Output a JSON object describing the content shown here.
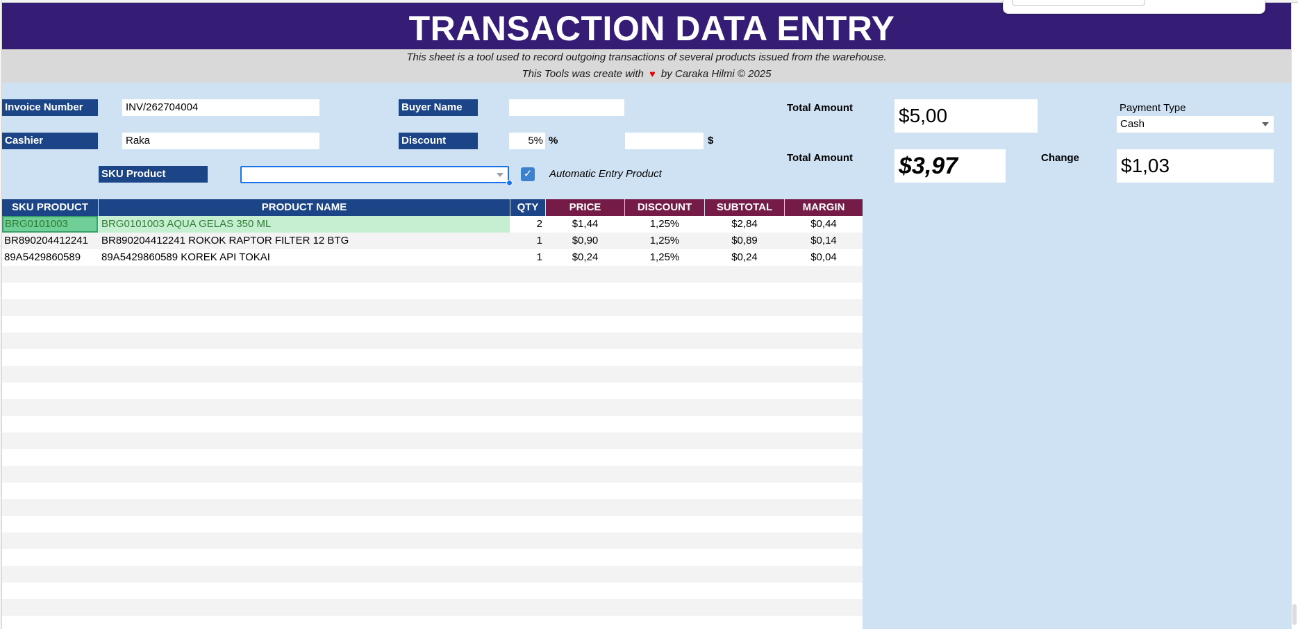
{
  "header": {
    "title": "TRANSACTION DATA ENTRY",
    "subtitle_line1": "This sheet is a tool used to record outgoing transactions of several products issued from the warehouse.",
    "credit_prefix": "This Tools was create with",
    "credit_heart": "♥",
    "credit_suffix": "by Caraka Hilmi ©  2025"
  },
  "form": {
    "invoice_label": "Invoice Number",
    "invoice_value": "INV/262704004",
    "buyer_label": "Buyer Name",
    "buyer_value": "",
    "cashier_label": "Cashier",
    "cashier_value": "Raka",
    "discount_label": "Discount",
    "discount_percent_value": "5%",
    "discount_percent_unit": "%",
    "discount_amount_value": "",
    "discount_amount_unit": "$",
    "sku_label": "SKU Product",
    "sku_value": "",
    "auto_entry_checked": true,
    "auto_entry_label": "Automatic Entry Product"
  },
  "summary": {
    "total_label_1": "Total Amount",
    "total_value_1": "$5,00",
    "total_label_2": "Total Amount",
    "total_value_2": "$3,97",
    "payment_type_label": "Payment Type",
    "payment_type_value": "Cash",
    "change_label": "Change",
    "change_value": "$1,03"
  },
  "table": {
    "headers": {
      "sku": "SKU PRODUCT",
      "name": "PRODUCT NAME",
      "qty": "QTY",
      "price": "PRICE",
      "discount": "DISCOUNT",
      "subtotal": "SUBTOTAL",
      "margin": "MARGIN"
    },
    "rows": [
      {
        "sku": "BRG0101003",
        "name": "BRG0101003 AQUA GELAS 350 ML",
        "qty": "2",
        "price": "$1,44",
        "discount": "1,25%",
        "subtotal": "$2,84",
        "margin": "$0,44"
      },
      {
        "sku": "BR890204412241",
        "name": "BR890204412241 ROKOK RAPTOR FILTER 12 BTG",
        "qty": "1",
        "price": "$0,90",
        "discount": "1,25%",
        "subtotal": "$0,89",
        "margin": "$0,14"
      },
      {
        "sku": "89A5429860589",
        "name": "89A5429860589 KOREK API TOKAI",
        "qty": "1",
        "price": "$0,24",
        "discount": "1,25%",
        "subtotal": "$0,24",
        "margin": "$0,04"
      }
    ]
  },
  "colors": {
    "banner": "#351c75",
    "label_blue": "#1c4587",
    "header_red": "#741b47",
    "sheet_bg": "#cfe2f3"
  }
}
